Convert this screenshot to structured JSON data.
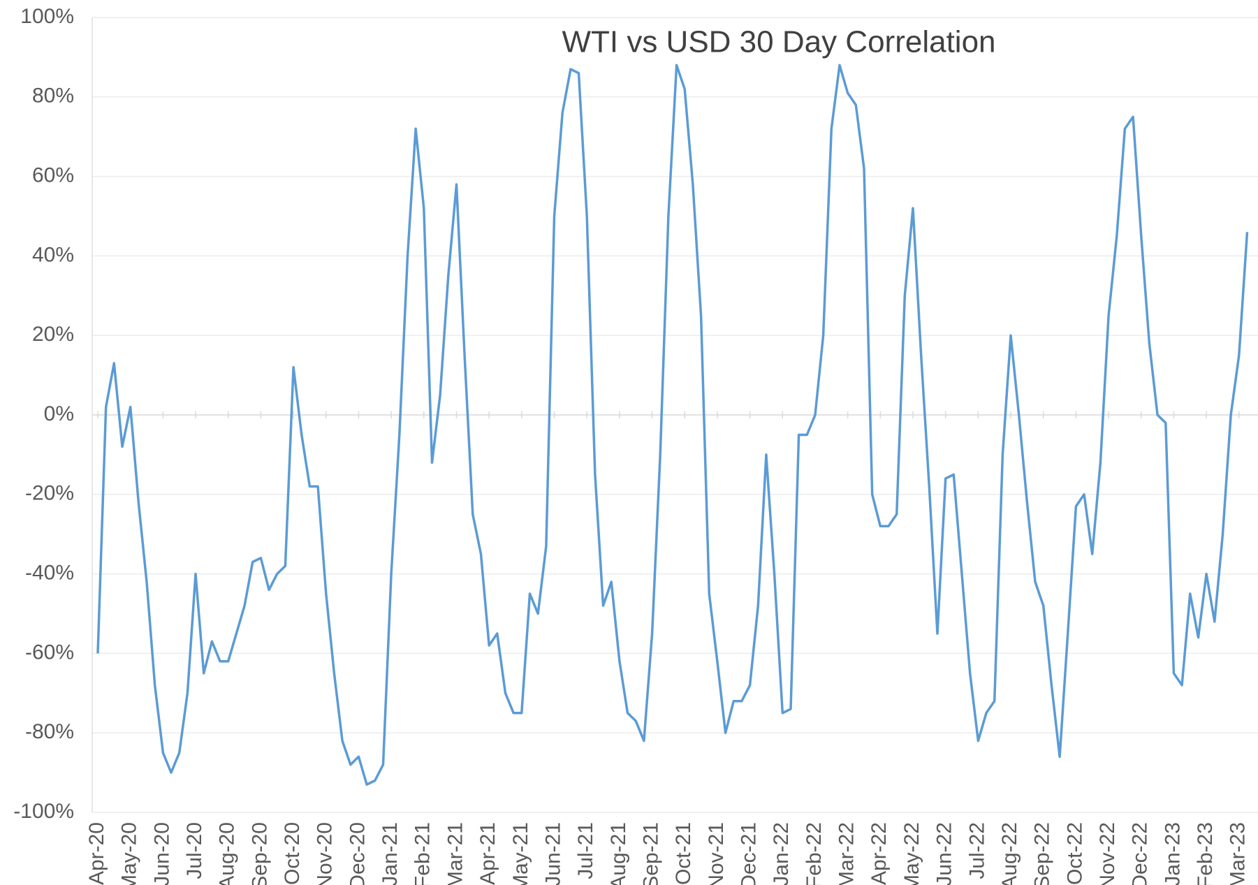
{
  "chart_data": {
    "type": "line",
    "title": "WTI vs USD 30 Day Correlation",
    "categories": [
      "Apr-20",
      null,
      null,
      null,
      "May-20",
      null,
      null,
      null,
      "Jun-20",
      null,
      null,
      null,
      "Jul-20",
      null,
      null,
      null,
      "Aug-20",
      null,
      null,
      null,
      "Sep-20",
      null,
      null,
      null,
      "Oct-20",
      null,
      null,
      null,
      "Nov-20",
      null,
      null,
      null,
      "Dec-20",
      null,
      null,
      null,
      "Jan-21",
      null,
      null,
      null,
      "Feb-21",
      null,
      null,
      null,
      "Mar-21",
      null,
      null,
      null,
      "Apr-21",
      null,
      null,
      null,
      "May-21",
      null,
      null,
      null,
      "Jun-21",
      null,
      null,
      null,
      "Jul-21",
      null,
      null,
      null,
      "Aug-21",
      null,
      null,
      null,
      "Sep-21",
      null,
      null,
      null,
      "Oct-21",
      null,
      null,
      null,
      "Nov-21",
      null,
      null,
      null,
      "Dec-21",
      null,
      null,
      null,
      "Jan-22",
      null,
      null,
      null,
      "Feb-22",
      null,
      null,
      null,
      "Mar-22",
      null,
      null,
      null,
      "Apr-22",
      null,
      null,
      null,
      "May-22",
      null,
      null,
      null,
      "Jun-22",
      null,
      null,
      null,
      "Jul-22",
      null,
      null,
      null,
      "Aug-22",
      null,
      null,
      null,
      "Sep-22",
      null,
      null,
      null,
      "Oct-22",
      null,
      null,
      null,
      "Nov-22",
      null,
      null,
      null,
      "Dec-22",
      null,
      null,
      null,
      "Jan-23",
      null,
      null,
      null,
      "Feb-23",
      null,
      null,
      null,
      "Mar-23",
      null
    ],
    "series": [
      {
        "color": "#5b9bd5",
        "values": [
          -60,
          2,
          13,
          -8,
          2,
          -22,
          -42,
          -68,
          -85,
          -90,
          -85,
          -70,
          -40,
          -65,
          -57,
          -62,
          -62,
          -55,
          -48,
          -37,
          -36,
          -44,
          -40,
          -38,
          12,
          -5,
          -18,
          -18,
          -45,
          -65,
          -82,
          -88,
          -86,
          -93,
          -92,
          -88,
          -40,
          -5,
          40,
          72,
          52,
          -12,
          5,
          35,
          58,
          15,
          -25,
          -35,
          -58,
          -55,
          -70,
          -75,
          -75,
          -45,
          -50,
          -33,
          50,
          76,
          87,
          86,
          50,
          -15,
          -48,
          -42,
          -62,
          -75,
          -77,
          -82,
          -55,
          -10,
          50,
          88,
          82,
          58,
          25,
          -45,
          -62,
          -80,
          -72,
          -72,
          -68,
          -48,
          -10,
          -40,
          -75,
          -74,
          -5,
          -5,
          0,
          20,
          72,
          88,
          81,
          78,
          62,
          -20,
          -28,
          -28,
          -25,
          30,
          52,
          15,
          -18,
          -55,
          -16,
          -15,
          -40,
          -65,
          -82,
          -75,
          -72,
          -10,
          20,
          0,
          -22,
          -42,
          -48,
          -68,
          -86,
          -55,
          -23,
          -20,
          -35,
          -12,
          25,
          45,
          72,
          75,
          45,
          18,
          0,
          -2,
          -65,
          -68,
          -45,
          -56,
          -40,
          -52,
          -30,
          0,
          15,
          46
        ]
      }
    ],
    "ylim": [
      -100,
      100
    ],
    "yticks": [
      {
        "value": -100,
        "label": "-100%"
      },
      {
        "value": -80,
        "label": "-80%"
      },
      {
        "value": -60,
        "label": "-60%"
      },
      {
        "value": -40,
        "label": "-40%"
      },
      {
        "value": -20,
        "label": "-20%"
      },
      {
        "value": 0,
        "label": "0%"
      },
      {
        "value": 20,
        "label": "20%"
      },
      {
        "value": 40,
        "label": "40%"
      },
      {
        "value": 60,
        "label": "60%"
      },
      {
        "value": 80,
        "label": "80%"
      },
      {
        "value": 100,
        "label": "100%"
      }
    ],
    "grid": true
  }
}
